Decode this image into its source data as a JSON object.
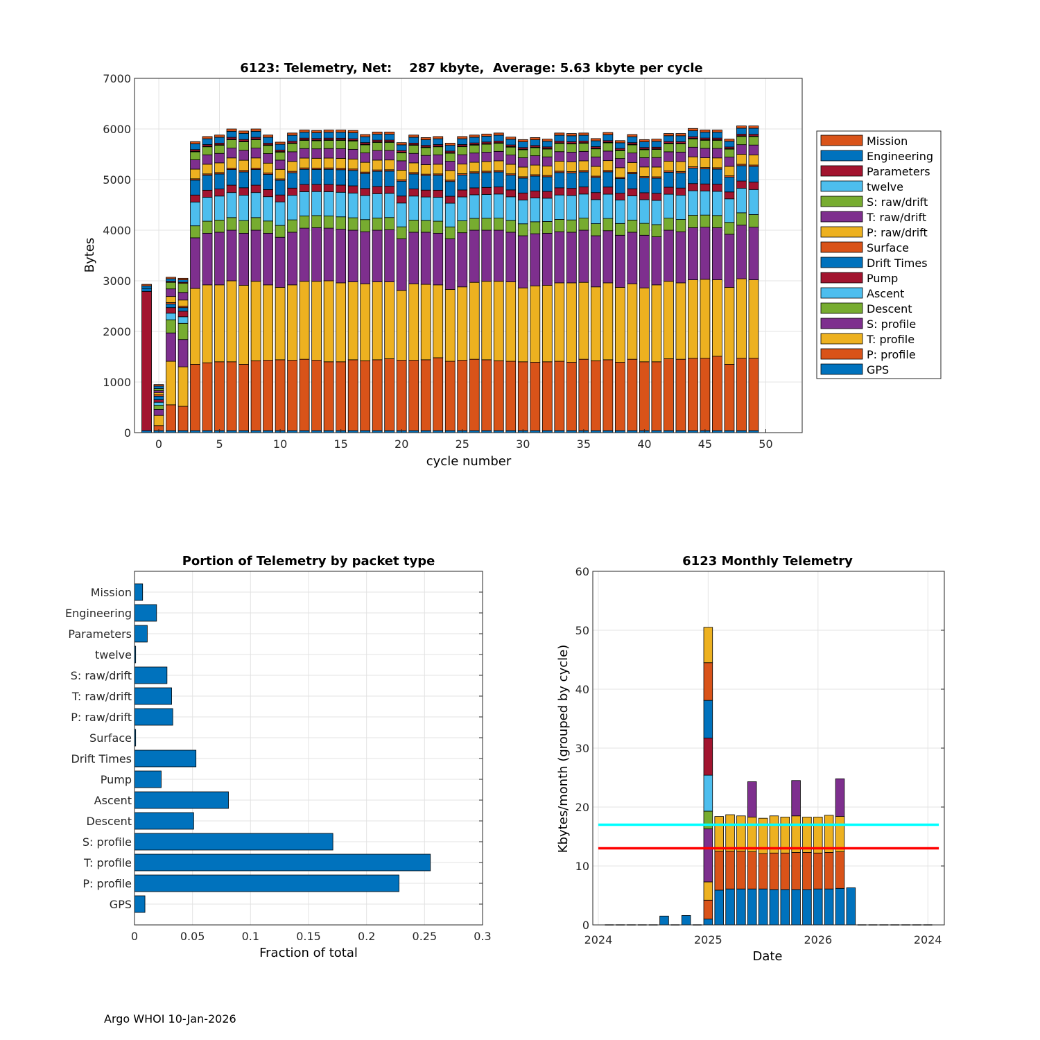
{
  "footer": "Argo WHOI 10-Jan-2026",
  "packet_types": [
    "GPS",
    "P: profile",
    "T: profile",
    "S: profile",
    "Descent",
    "Ascent",
    "Pump",
    "Drift Times",
    "Surface",
    "P: raw/drift",
    "T: raw/drift",
    "S: raw/drift",
    "twelve",
    "Parameters",
    "Engineering",
    "Mission"
  ],
  "palette": {
    "GPS": "#0072BD",
    "P: profile": "#D95319",
    "T: profile": "#EDB120",
    "S: profile": "#7E2F8E",
    "Descent": "#77AC30",
    "Ascent": "#4DBEEE",
    "Pump": "#A2142F",
    "Drift Times": "#0072BD",
    "Surface": "#D95319",
    "P: raw/drift": "#EDB120",
    "T: raw/drift": "#7E2F8E",
    "S: raw/drift": "#77AC30",
    "twelve": "#4DBEEE",
    "Parameters": "#A2142F",
    "Engineering": "#0072BD",
    "Mission": "#D95319"
  },
  "chart_data": [
    {
      "type": "bar",
      "stacked": true,
      "title": "6123: Telemetry, Net:    287 kbyte,  Average: 5.63 kbyte per cycle",
      "xlabel": "cycle number",
      "ylabel": "Bytes",
      "xlim": [
        -2,
        53
      ],
      "ylim": [
        0,
        7000
      ],
      "xticks": [
        0,
        5,
        10,
        15,
        20,
        25,
        30,
        35,
        40,
        45,
        50
      ],
      "yticks": [
        0,
        1000,
        2000,
        3000,
        4000,
        5000,
        6000,
        7000
      ],
      "legend": [
        "Mission",
        "Engineering",
        "Parameters",
        "twelve",
        "S: raw/drift",
        "T: raw/drift",
        "P: raw/drift",
        "Surface",
        "Drift Times",
        "Pump",
        "Ascent",
        "Descent",
        "S: profile",
        "T: profile",
        "P: profile",
        "GPS"
      ],
      "legend_position": "right-outside",
      "special_bars": [
        {
          "x": -1,
          "values": {
            "GPS": 40,
            "Pump": 2750,
            "Drift Times": 60,
            "Engineering": 50,
            "Mission": 30
          }
        },
        {
          "x": 0,
          "values": {
            "GPS": 40,
            "P: profile": 100,
            "T: profile": 200,
            "S: profile": 120,
            "Descent": 80,
            "Ascent": 60,
            "Pump": 50,
            "Drift Times": 70,
            "Surface": 30,
            "P: raw/drift": 40,
            "T: raw/drift": 40,
            "S: raw/drift": 40,
            "Engineering": 50,
            "Mission": 30
          }
        },
        {
          "x": 1,
          "values": {
            "GPS": 40,
            "P: profile": 510,
            "T: profile": 860,
            "S: profile": 560,
            "Descent": 260,
            "Ascent": 130,
            "Pump": 110,
            "Drift Times": 70,
            "Surface": 30,
            "P: raw/drift": 120,
            "T: raw/drift": 150,
            "S: raw/drift": 130,
            "Parameters": 20,
            "Engineering": 50,
            "Mission": 30
          }
        },
        {
          "x": 2,
          "values": {
            "GPS": 40,
            "P: profile": 480,
            "T: profile": 780,
            "S: profile": 540,
            "Descent": 320,
            "Ascent": 130,
            "Pump": 110,
            "Drift Times": 70,
            "Surface": 30,
            "P: raw/drift": 120,
            "T: raw/drift": 150,
            "S: raw/drift": 180,
            "Parameters": 20,
            "Engineering": 50,
            "Mission": 30
          }
        }
      ],
      "regular_cycles": {
        "x": [
          3,
          4,
          5,
          6,
          7,
          8,
          9,
          10,
          11,
          12,
          13,
          14,
          15,
          16,
          17,
          18,
          19,
          20,
          21,
          22,
          23,
          24,
          25,
          26,
          27,
          28,
          29,
          30,
          31,
          32,
          33,
          34,
          35,
          36,
          37,
          38,
          39,
          40,
          41,
          42,
          43,
          44,
          45,
          46,
          47,
          48,
          49
        ],
        "totals": [
          5750,
          5850,
          5880,
          6000,
          5960,
          6000,
          5880,
          5740,
          5920,
          5980,
          5970,
          5980,
          5980,
          5970,
          5890,
          5940,
          5940,
          5730,
          5880,
          5830,
          5850,
          5720,
          5850,
          5880,
          5900,
          5920,
          5840,
          5790,
          5830,
          5800,
          5920,
          5910,
          5920,
          5810,
          5930,
          5770,
          5890,
          5790,
          5800,
          5910,
          5910,
          6010,
          5980,
          5980,
          5800,
          6060,
          6060
        ],
        "p_top": [
          1350,
          1380,
          1400,
          1400,
          1350,
          1420,
          1430,
          1440,
          1430,
          1450,
          1430,
          1400,
          1400,
          1440,
          1420,
          1440,
          1460,
          1430,
          1430,
          1440,
          1480,
          1410,
          1430,
          1450,
          1440,
          1420,
          1410,
          1400,
          1390,
          1400,
          1410,
          1390,
          1450,
          1420,
          1440,
          1390,
          1450,
          1400,
          1400,
          1460,
          1450,
          1470,
          1470,
          1510,
          1350,
          1470,
          1470
        ],
        "t_top": [
          2850,
          2920,
          2920,
          3000,
          2910,
          2990,
          2920,
          2870,
          2920,
          2990,
          2990,
          3000,
          2960,
          2980,
          2940,
          2980,
          2980,
          2810,
          2940,
          2930,
          2920,
          2830,
          2880,
          2970,
          2990,
          2990,
          2980,
          2860,
          2900,
          2910,
          2960,
          2960,
          2970,
          2880,
          2960,
          2870,
          2940,
          2860,
          2920,
          2990,
          2960,
          3020,
          3030,
          3020,
          2870,
          3040,
          3020
        ],
        "s_top": [
          3850,
          3940,
          3960,
          4000,
          3940,
          4000,
          3940,
          3860,
          3960,
          4040,
          4050,
          4040,
          4020,
          4000,
          3970,
          4000,
          4010,
          3830,
          3960,
          3960,
          3940,
          3830,
          3950,
          4000,
          4000,
          4000,
          3960,
          3890,
          3930,
          3940,
          3970,
          3960,
          4000,
          3890,
          3990,
          3900,
          3960,
          3900,
          3870,
          4000,
          3970,
          4050,
          4060,
          4050,
          3920,
          4100,
          4060
        ]
      }
    },
    {
      "type": "bar",
      "orientation": "horizontal",
      "title": "Portion of Telemetry by packet type",
      "xlabel": "Fraction of total",
      "xlim": [
        0,
        0.3
      ],
      "xticks": [
        "0",
        "0.05",
        "0.1",
        "0.15",
        "0.2",
        "0.25",
        "0.3"
      ],
      "categories": [
        "GPS",
        "P: profile",
        "T: profile",
        "S: profile",
        "Descent",
        "Ascent",
        "Pump",
        "Drift Times",
        "Surface",
        "P: raw/drift",
        "T: raw/drift",
        "S: raw/drift",
        "twelve",
        "Parameters",
        "Engineering",
        "Mission"
      ],
      "values": [
        0.009,
        0.228,
        0.255,
        0.171,
        0.051,
        0.081,
        0.023,
        0.053,
        0.001,
        0.033,
        0.032,
        0.028,
        0.001,
        0.011,
        0.019,
        0.007
      ]
    },
    {
      "type": "bar",
      "stacked": true,
      "title": "6123 Monthly Telemetry",
      "xlabel": "Date",
      "ylabel": "Kbytes/month (grouped by cycle)",
      "ylim": [
        0,
        60
      ],
      "yticks": [
        0,
        10,
        20,
        30,
        40,
        50,
        60
      ],
      "xlim": [
        -0.5,
        31.5
      ],
      "xtick_positions": [
        0,
        10,
        20,
        30
      ],
      "xtick_labels": [
        "2024",
        "2025",
        "2026",
        "2024"
      ],
      "reference_lines": [
        {
          "value": 17,
          "color": "#00FFFF",
          "from": 0,
          "to": 31
        },
        {
          "value": 13,
          "color": "#FF0000",
          "from": 0,
          "to": 31
        }
      ],
      "months": [
        {
          "m": 6,
          "segments": [
            [
              "#0072BD",
              1.5
            ]
          ]
        },
        {
          "m": 8,
          "segments": [
            [
              "#0072BD",
              1.6
            ]
          ]
        },
        {
          "m": 10,
          "segments": [
            [
              "#0072BD",
              1.0
            ],
            [
              "#D95319",
              3.2
            ],
            [
              "#EDB120",
              3.1
            ],
            [
              "#7E2F8E",
              9.0
            ],
            [
              "#77AC30",
              3.0
            ],
            [
              "#4DBEEE",
              6.1
            ],
            [
              "#A2142F",
              6.3
            ],
            [
              "#0072BD",
              6.4
            ],
            [
              "#D95319",
              6.4
            ],
            [
              "#EDB120",
              6.0
            ]
          ]
        },
        {
          "m": 11,
          "segments": [
            [
              "#0072BD",
              5.9
            ],
            [
              "#D95319",
              6.6
            ],
            [
              "#EDB120",
              5.9
            ]
          ]
        },
        {
          "m": 12,
          "segments": [
            [
              "#0072BD",
              6.1
            ],
            [
              "#D95319",
              6.4
            ],
            [
              "#EDB120",
              6.2
            ]
          ]
        },
        {
          "m": 13,
          "segments": [
            [
              "#0072BD",
              6.1
            ],
            [
              "#D95319",
              6.4
            ],
            [
              "#EDB120",
              6.0
            ]
          ]
        },
        {
          "m": 14,
          "segments": [
            [
              "#0072BD",
              6.1
            ],
            [
              "#D95319",
              6.3
            ],
            [
              "#EDB120",
              5.9
            ],
            [
              "#7E2F8E",
              6.0
            ]
          ]
        },
        {
          "m": 15,
          "segments": [
            [
              "#0072BD",
              6.1
            ],
            [
              "#D95319",
              6.0
            ],
            [
              "#EDB120",
              6.0
            ]
          ]
        },
        {
          "m": 16,
          "segments": [
            [
              "#0072BD",
              6.0
            ],
            [
              "#D95319",
              6.2
            ],
            [
              "#EDB120",
              6.3
            ]
          ]
        },
        {
          "m": 17,
          "segments": [
            [
              "#0072BD",
              6.0
            ],
            [
              "#D95319",
              6.2
            ],
            [
              "#EDB120",
              6.1
            ]
          ]
        },
        {
          "m": 18,
          "segments": [
            [
              "#0072BD",
              6.0
            ],
            [
              "#D95319",
              6.3
            ],
            [
              "#EDB120",
              6.2
            ],
            [
              "#7E2F8E",
              6.0
            ]
          ]
        },
        {
          "m": 19,
          "segments": [
            [
              "#0072BD",
              6.0
            ],
            [
              "#D95319",
              6.3
            ],
            [
              "#EDB120",
              6.0
            ]
          ]
        },
        {
          "m": 20,
          "segments": [
            [
              "#0072BD",
              6.1
            ],
            [
              "#D95319",
              6.1
            ],
            [
              "#EDB120",
              6.1
            ]
          ]
        },
        {
          "m": 21,
          "segments": [
            [
              "#0072BD",
              6.1
            ],
            [
              "#D95319",
              6.2
            ],
            [
              "#EDB120",
              6.3
            ]
          ]
        },
        {
          "m": 22,
          "segments": [
            [
              "#0072BD",
              6.2
            ],
            [
              "#D95319",
              6.2
            ],
            [
              "#EDB120",
              6.0
            ],
            [
              "#7E2F8E",
              6.4
            ]
          ]
        },
        {
          "m": 23,
          "segments": [
            [
              "#0072BD",
              6.3
            ]
          ]
        }
      ],
      "zero_months_range": [
        1,
        30
      ]
    }
  ]
}
